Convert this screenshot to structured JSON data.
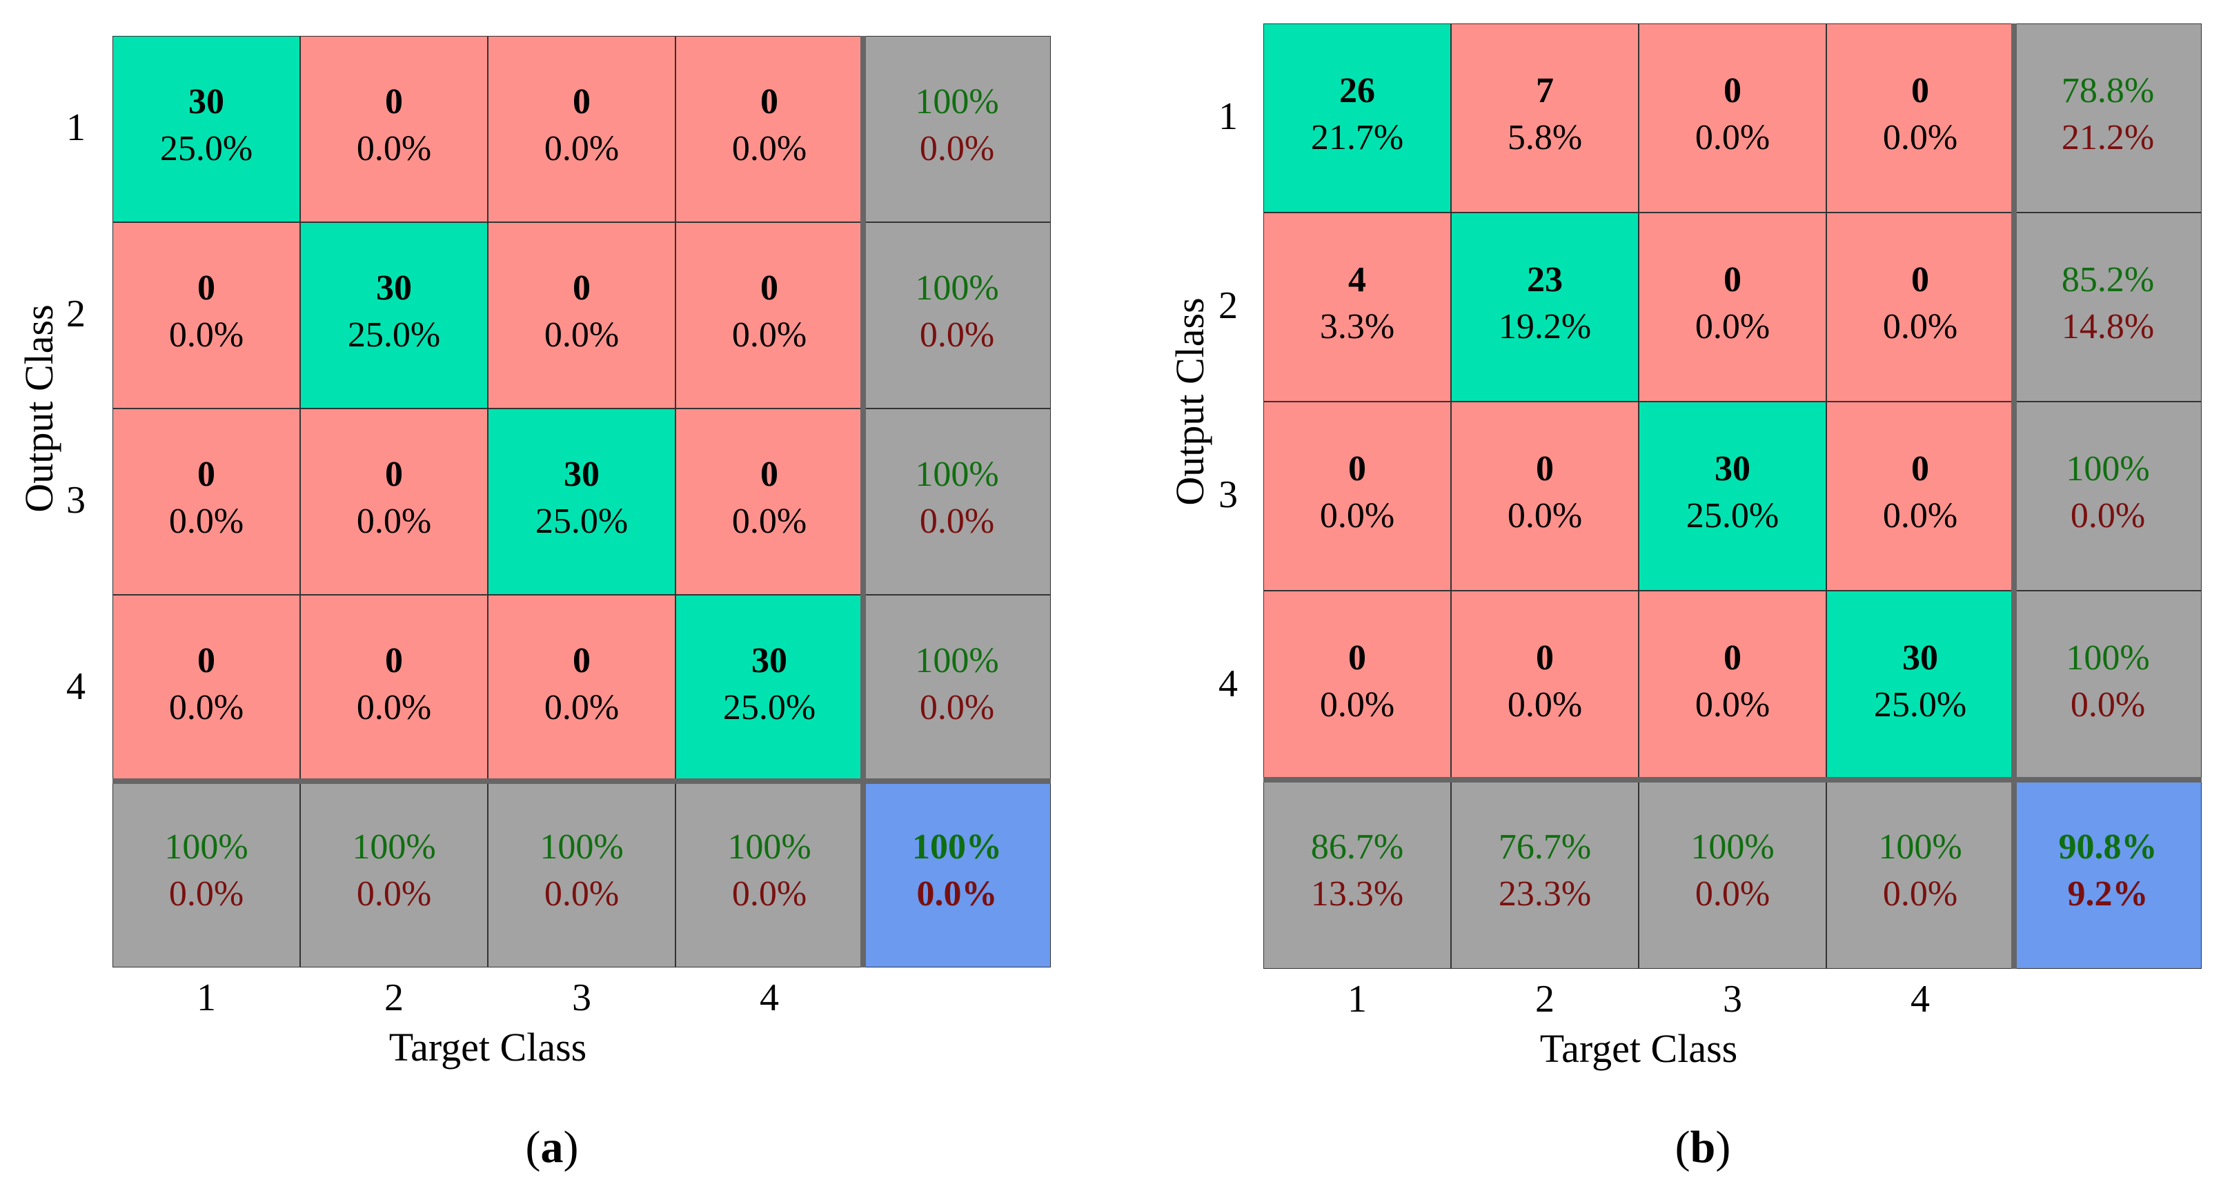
{
  "chart_data": [
    {
      "type": "heatmap",
      "panel_label": "a",
      "xlabel": "Target Class",
      "ylabel": "Output Class",
      "x_ticks": [
        "1",
        "2",
        "3",
        "4"
      ],
      "y_ticks": [
        "1",
        "2",
        "3",
        "4"
      ],
      "matrix": [
        [
          {
            "count": "30",
            "pct": "25.0%"
          },
          {
            "count": "0",
            "pct": "0.0%"
          },
          {
            "count": "0",
            "pct": "0.0%"
          },
          {
            "count": "0",
            "pct": "0.0%"
          }
        ],
        [
          {
            "count": "0",
            "pct": "0.0%"
          },
          {
            "count": "30",
            "pct": "25.0%"
          },
          {
            "count": "0",
            "pct": "0.0%"
          },
          {
            "count": "0",
            "pct": "0.0%"
          }
        ],
        [
          {
            "count": "0",
            "pct": "0.0%"
          },
          {
            "count": "0",
            "pct": "0.0%"
          },
          {
            "count": "30",
            "pct": "25.0%"
          },
          {
            "count": "0",
            "pct": "0.0%"
          }
        ],
        [
          {
            "count": "0",
            "pct": "0.0%"
          },
          {
            "count": "0",
            "pct": "0.0%"
          },
          {
            "count": "0",
            "pct": "0.0%"
          },
          {
            "count": "30",
            "pct": "25.0%"
          }
        ]
      ],
      "row_summary": [
        {
          "good": "100%",
          "bad": "0.0%"
        },
        {
          "good": "100%",
          "bad": "0.0%"
        },
        {
          "good": "100%",
          "bad": "0.0%"
        },
        {
          "good": "100%",
          "bad": "0.0%"
        }
      ],
      "col_summary": [
        {
          "good": "100%",
          "bad": "0.0%"
        },
        {
          "good": "100%",
          "bad": "0.0%"
        },
        {
          "good": "100%",
          "bad": "0.0%"
        },
        {
          "good": "100%",
          "bad": "0.0%"
        }
      ],
      "total": {
        "good": "100%",
        "bad": "0.0%"
      }
    },
    {
      "type": "heatmap",
      "panel_label": "b",
      "xlabel": "Target Class",
      "ylabel": "Output Class",
      "x_ticks": [
        "1",
        "2",
        "3",
        "4"
      ],
      "y_ticks": [
        "1",
        "2",
        "3",
        "4"
      ],
      "matrix": [
        [
          {
            "count": "26",
            "pct": "21.7%"
          },
          {
            "count": "7",
            "pct": "5.8%"
          },
          {
            "count": "0",
            "pct": "0.0%"
          },
          {
            "count": "0",
            "pct": "0.0%"
          }
        ],
        [
          {
            "count": "4",
            "pct": "3.3%"
          },
          {
            "count": "23",
            "pct": "19.2%"
          },
          {
            "count": "0",
            "pct": "0.0%"
          },
          {
            "count": "0",
            "pct": "0.0%"
          }
        ],
        [
          {
            "count": "0",
            "pct": "0.0%"
          },
          {
            "count": "0",
            "pct": "0.0%"
          },
          {
            "count": "30",
            "pct": "25.0%"
          },
          {
            "count": "0",
            "pct": "0.0%"
          }
        ],
        [
          {
            "count": "0",
            "pct": "0.0%"
          },
          {
            "count": "0",
            "pct": "0.0%"
          },
          {
            "count": "0",
            "pct": "0.0%"
          },
          {
            "count": "30",
            "pct": "25.0%"
          }
        ]
      ],
      "row_summary": [
        {
          "good": "78.8%",
          "bad": "21.2%"
        },
        {
          "good": "85.2%",
          "bad": "14.8%"
        },
        {
          "good": "100%",
          "bad": "0.0%"
        },
        {
          "good": "100%",
          "bad": "0.0%"
        }
      ],
      "col_summary": [
        {
          "good": "86.7%",
          "bad": "13.3%"
        },
        {
          "good": "76.7%",
          "bad": "23.3%"
        },
        {
          "good": "100%",
          "bad": "0.0%"
        },
        {
          "good": "100%",
          "bad": "0.0%"
        }
      ],
      "total": {
        "good": "90.8%",
        "bad": "9.2%"
      }
    }
  ],
  "colors": {
    "correct": "#00E3B0",
    "wrong": "#FF918C",
    "summary": "#A3A3A3",
    "total": "#6B9AEF",
    "good_text": "#0F6E0F",
    "bad_text": "#7A0F0F"
  }
}
